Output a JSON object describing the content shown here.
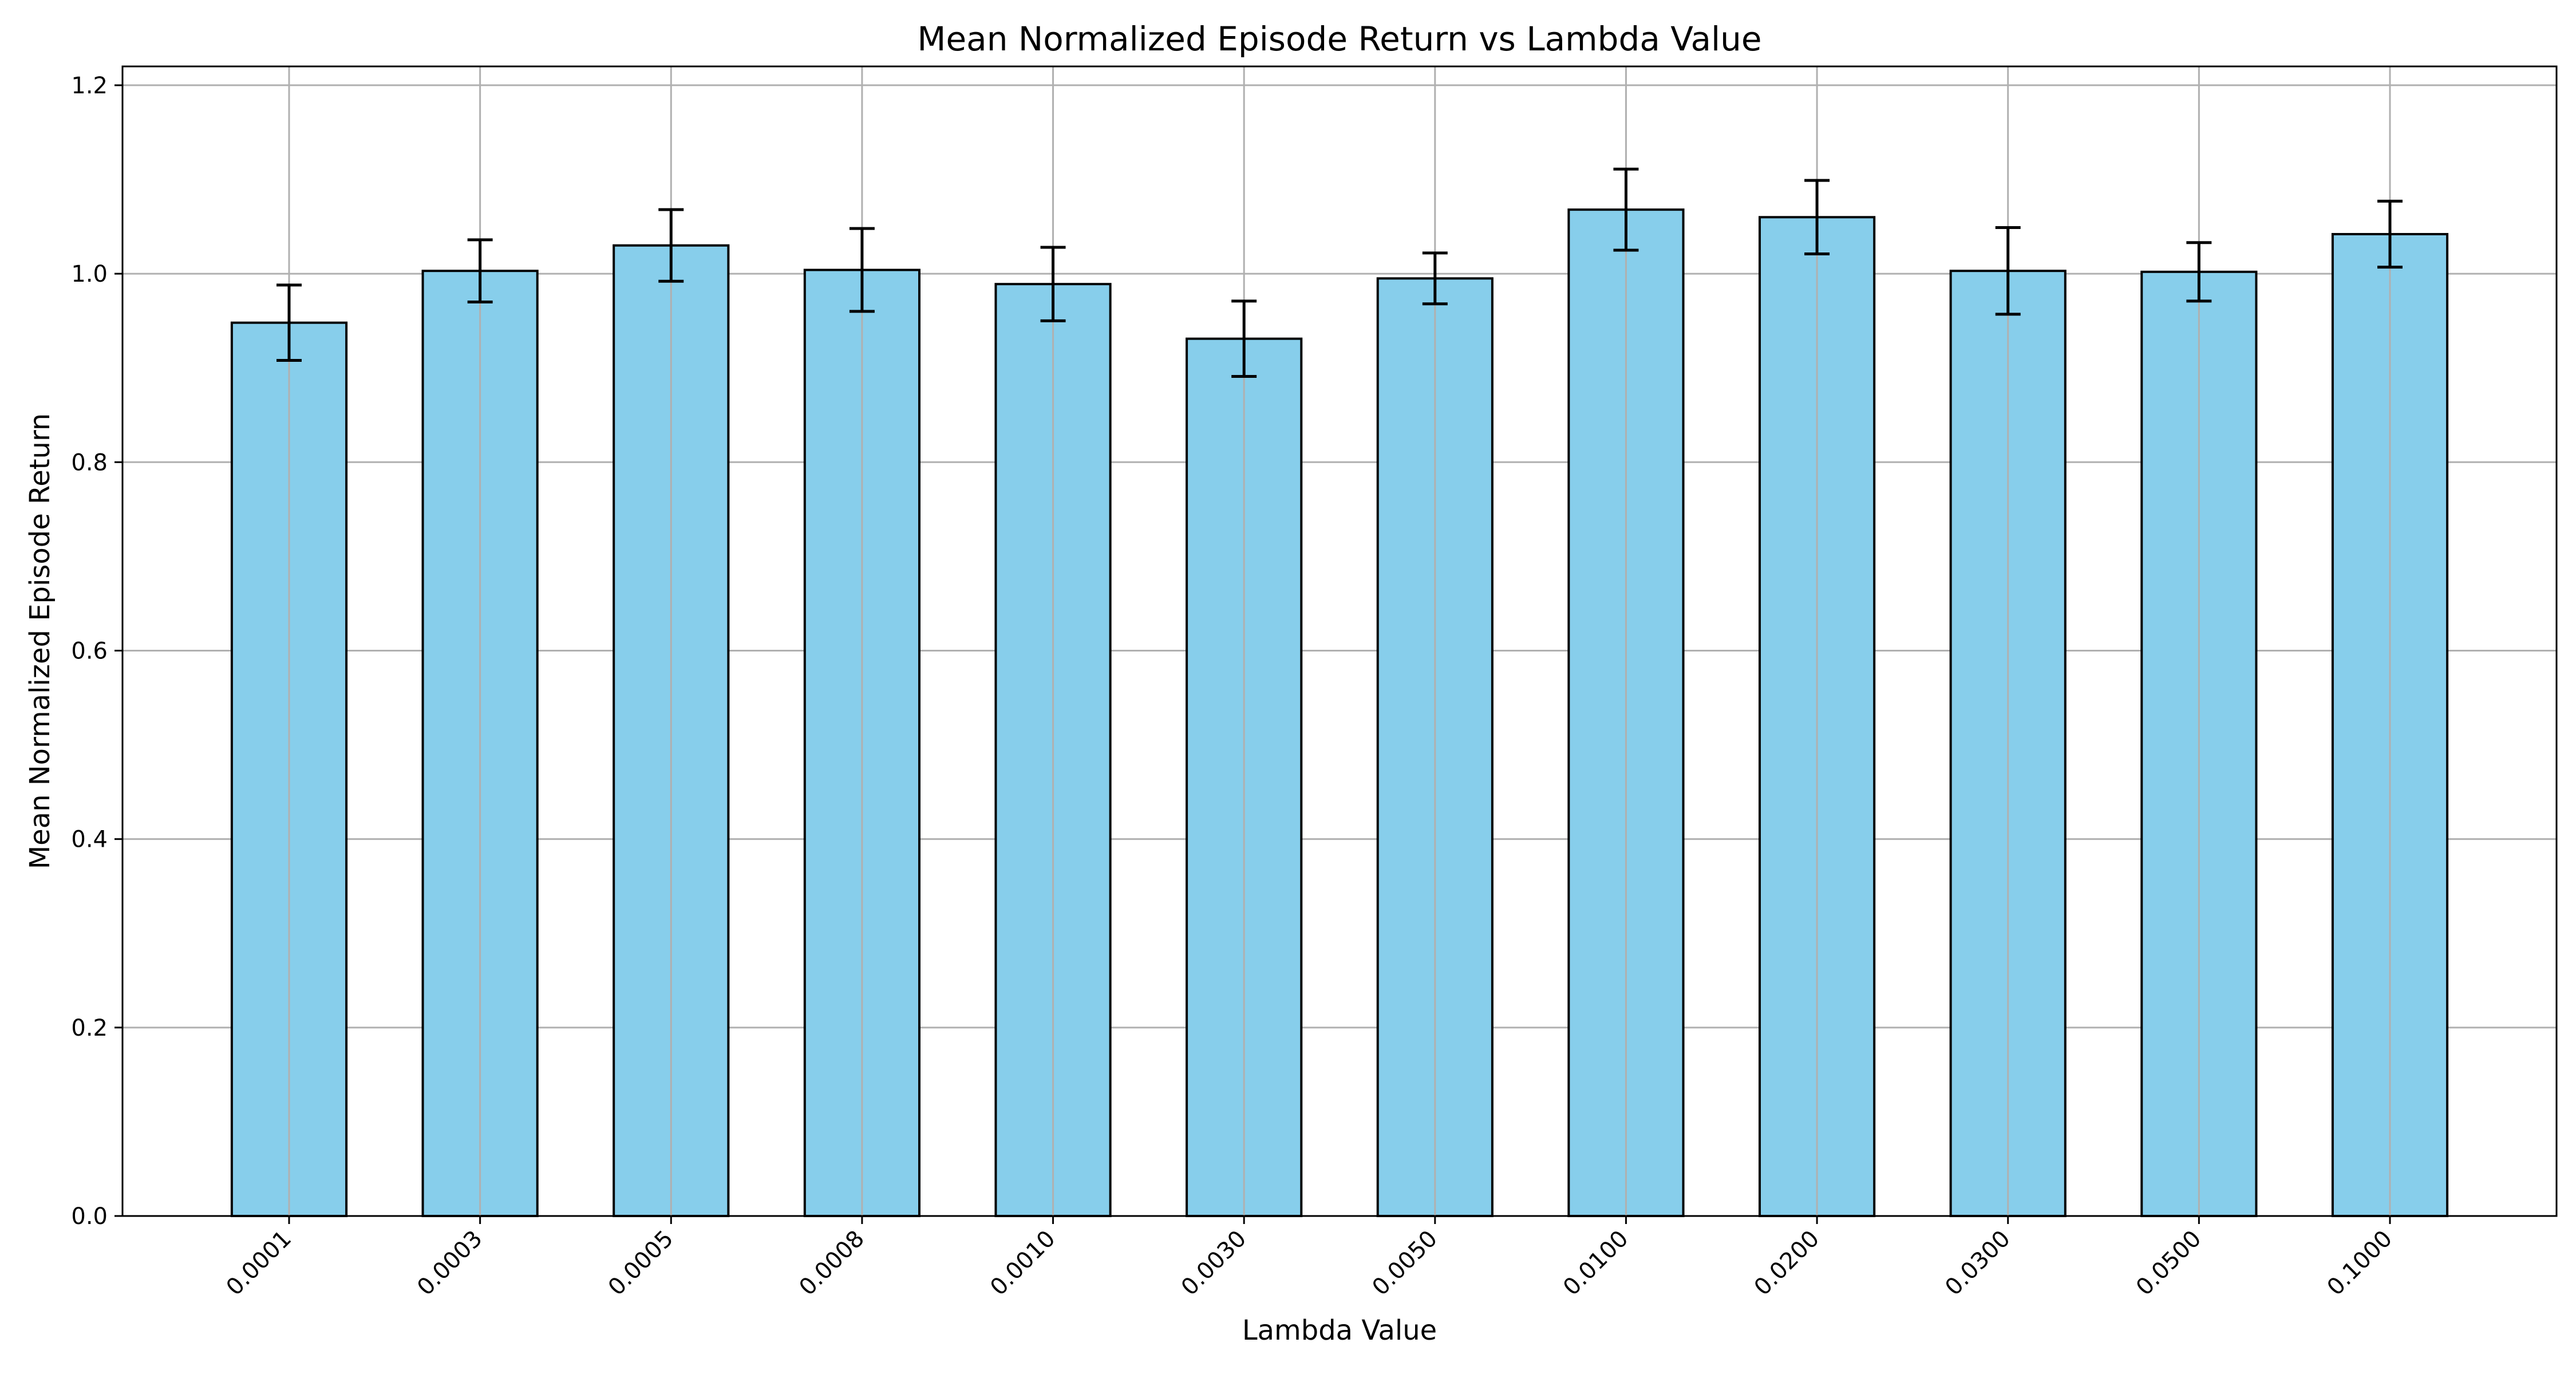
{
  "chart_data": {
    "type": "bar",
    "title": "Mean Normalized Episode Return vs Lambda Value",
    "xlabel": "Lambda Value",
    "ylabel": "Mean Normalized Episode Return",
    "categories": [
      "0.0001",
      "0.0003",
      "0.0005",
      "0.0008",
      "0.0010",
      "0.0030",
      "0.0050",
      "0.0100",
      "0.0200",
      "0.0300",
      "0.0500",
      "0.1000"
    ],
    "values": [
      0.948,
      1.003,
      1.03,
      1.004,
      0.989,
      0.931,
      0.995,
      1.068,
      1.06,
      1.003,
      1.002,
      1.042
    ],
    "errors": [
      0.04,
      0.033,
      0.038,
      0.044,
      0.039,
      0.04,
      0.027,
      0.043,
      0.039,
      0.046,
      0.031,
      0.035
    ],
    "ylim": [
      0,
      1.22
    ],
    "yticks": [
      "0.0",
      "0.2",
      "0.4",
      "0.6",
      "0.8",
      "1.0",
      "1.2"
    ],
    "grid": true,
    "colors": {
      "bar": "#87ceeb",
      "edge": "#000000",
      "grid": "#b0b0b0"
    }
  }
}
